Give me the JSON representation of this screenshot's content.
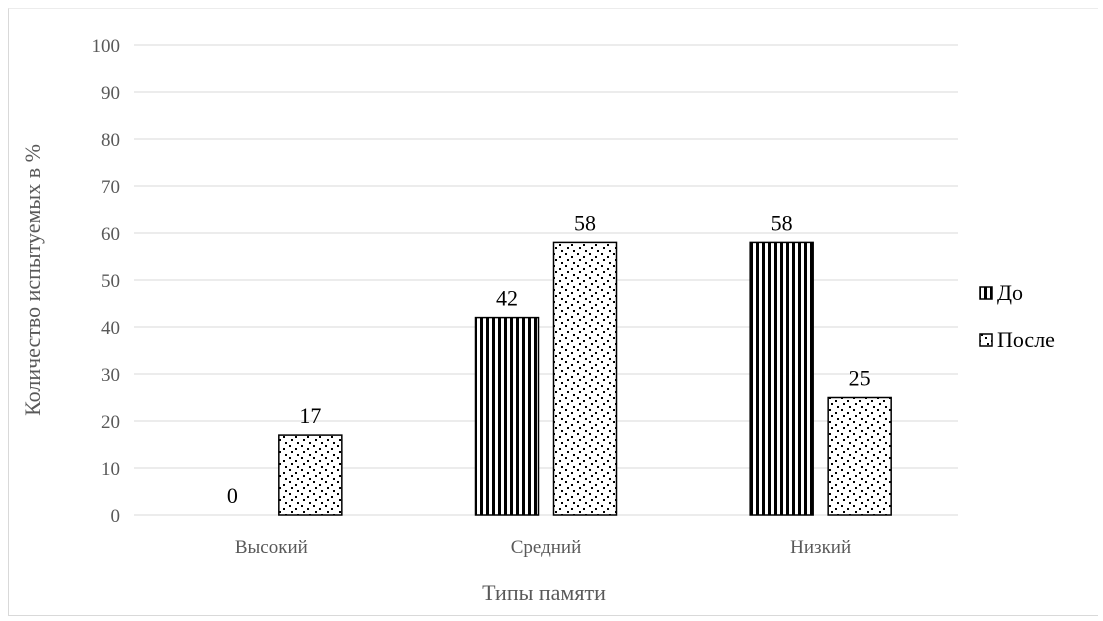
{
  "chart_data": {
    "type": "bar",
    "categories": [
      "Высокий",
      "Средний",
      "Низкий"
    ],
    "series": [
      {
        "name": "До",
        "values": [
          0,
          42,
          58
        ],
        "pattern": "vertical-stripes",
        "color": "#000000"
      },
      {
        "name": "После",
        "values": [
          17,
          58,
          25
        ],
        "pattern": "dots",
        "color": "#000000"
      }
    ],
    "title": "",
    "xlabel": "Типы памяти",
    "ylabel": "Количество испытуемых в %",
    "ylim": [
      0,
      100
    ],
    "yticks": [
      0,
      10,
      20,
      30,
      40,
      50,
      60,
      70,
      80,
      90,
      100
    ],
    "grid": true,
    "legend": "right",
    "gridColor": "#d9d9d9"
  }
}
